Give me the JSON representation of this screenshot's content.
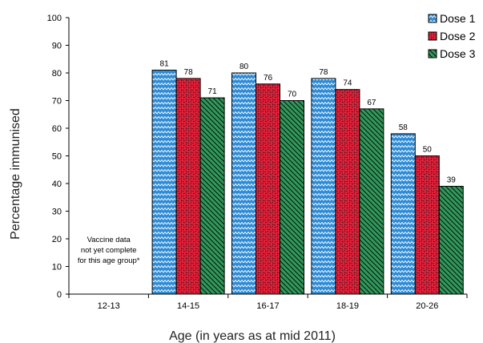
{
  "chart_data": {
    "type": "bar",
    "ylabel": "Percentage immunised",
    "xlabel": "Age (in years as at mid 2011)",
    "ylim": [
      0,
      100
    ],
    "ytick_step": 10,
    "categories": [
      "12-13",
      "14-15",
      "16-17",
      "18-19",
      "20-26"
    ],
    "series": [
      {
        "name": "Dose 1",
        "values": [
          null,
          81,
          80,
          78,
          58
        ],
        "color": "#2e8bd6",
        "pattern": "zigzag"
      },
      {
        "name": "Dose 2",
        "values": [
          null,
          78,
          76,
          74,
          50
        ],
        "color": "#e8203a",
        "pattern": "dots"
      },
      {
        "name": "Dose 3",
        "values": [
          null,
          71,
          70,
          67,
          39
        ],
        "color": "#2e9b5a",
        "pattern": "diagonal"
      }
    ],
    "annotation": [
      "Vaccine data",
      "not yet complete",
      "for this age group*"
    ],
    "legend_position": "top-right",
    "grid": false
  }
}
